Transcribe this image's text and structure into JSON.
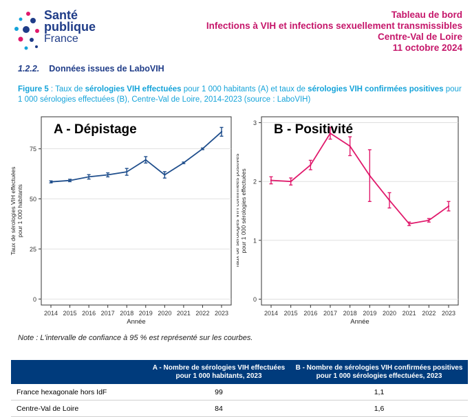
{
  "logo": {
    "line1": "Santé",
    "line2": "publique",
    "line3": "France"
  },
  "header": {
    "line1": "Tableau de bord",
    "line2": "Infections à VIH et infections sexuellement transmissibles",
    "line3": "Centre-Val de Loire",
    "line4": "11 octobre 2024"
  },
  "section": {
    "number": "1.2.2.",
    "title": "Données issues de LaboVIH"
  },
  "caption": {
    "fig": "Figure 5",
    "p1": " : Taux de ",
    "b1": "sérologies VIH effectuées",
    "p2": " pour 1 000 habitants (A) et taux de ",
    "b2": "sérologies VIH confirmées positives",
    "p3": " pour 1 000 sérologies effectuées (B), Centre-Val de Loire, 2014-2023 (source : LaboVIH)"
  },
  "note": "Note : L'intervalle de confiance à 95 % est représenté sur les courbes.",
  "colors": {
    "blue": "#1f4e8c",
    "pink": "#e0196b",
    "header": "#c5166a",
    "caption": "#14a3d9",
    "table_header": "#003b7c"
  },
  "chart_data": [
    {
      "type": "line",
      "title": "A - Dépistage",
      "xlabel": "Année",
      "ylabel_lines": [
        "Taux de sérologies VIH effectuées",
        "pour 1 000 habitants"
      ],
      "x": [
        "2014",
        "2015",
        "2016",
        "2017",
        "2018",
        "2019",
        "2020",
        "2021",
        "2022",
        "2023"
      ],
      "y": [
        58.5,
        59.2,
        61.0,
        62.0,
        63.5,
        69.5,
        62.0,
        68.0,
        75.0,
        83.5
      ],
      "ci_low": [
        58.0,
        58.6,
        59.9,
        61.0,
        61.8,
        67.9,
        60.4,
        67.6,
        74.6,
        81.3
      ],
      "ci_high": [
        59.0,
        59.8,
        62.1,
        63.0,
        65.2,
        71.1,
        63.6,
        68.4,
        75.4,
        85.7
      ],
      "yticks": [
        "0",
        "25",
        "50",
        "75"
      ],
      "ytick_values": [
        0,
        25,
        50,
        75
      ],
      "ylim": [
        -3,
        91
      ],
      "grid": true
    },
    {
      "type": "line",
      "title": "B - Positivité",
      "xlabel": "Année",
      "ylabel_lines": [
        "Taux de sérologies VIH confirmées positives",
        "pour 1 000 sérologies effectuées"
      ],
      "x": [
        "2014",
        "2015",
        "2016",
        "2017",
        "2018",
        "2019",
        "2020",
        "2021",
        "2022",
        "2023"
      ],
      "y": [
        2.02,
        2.0,
        2.28,
        2.82,
        2.6,
        2.1,
        1.68,
        1.28,
        1.34,
        1.58
      ],
      "ci_low": [
        1.96,
        1.94,
        2.2,
        2.72,
        2.44,
        1.66,
        1.55,
        1.25,
        1.31,
        1.5
      ],
      "ci_high": [
        2.08,
        2.06,
        2.36,
        2.92,
        2.76,
        2.54,
        1.81,
        1.31,
        1.37,
        1.66
      ],
      "yticks": [
        "0",
        "1",
        "2",
        "3"
      ],
      "ytick_values": [
        0,
        1,
        2,
        3
      ],
      "ylim": [
        -0.1,
        3.1
      ],
      "grid": true
    }
  ],
  "table": {
    "headers": [
      "",
      "A - Nombre de sérologies VIH effectuées pour 1 000 habitants, 2023",
      "B - Nombre de sérologies VIH confirmées positives pour 1 000 sérologies effectuées, 2023"
    ],
    "rows": [
      {
        "label": "France hexagonale hors IdF",
        "a": "99",
        "b": "1,1"
      },
      {
        "label": "Centre-Val de Loire",
        "a": "84",
        "b": "1,6"
      }
    ]
  }
}
